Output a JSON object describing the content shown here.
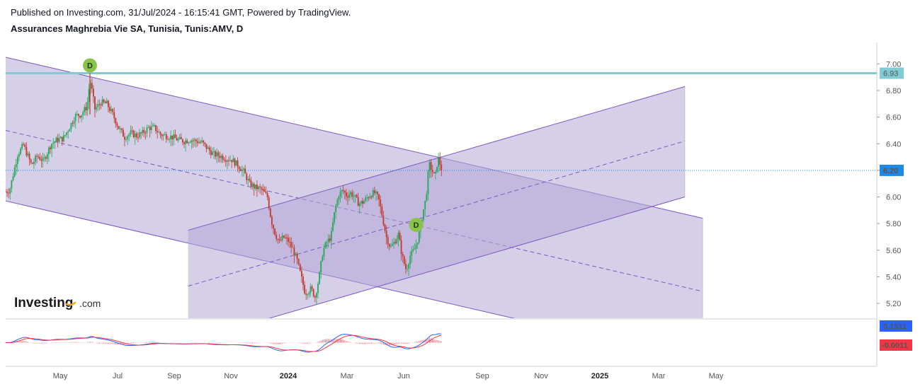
{
  "header": {
    "published": "Published on Investing.com, 31/Jul/2024 - 16:15:41 GMT, Powered by TradingView.",
    "symbol": "Assurances Maghrebia Vie SA, Tunisia, Tunis:AMV, D"
  },
  "logo": {
    "brand": "Investing",
    "suffix": ".com"
  },
  "colors": {
    "up": "#26a65b",
    "down": "#c0392b",
    "channel_fill": "#b4a7d6",
    "channel_line": "#7e57c2",
    "resistance": "#80cbd4",
    "current_price": "#1e88e5",
    "macd_line": "#2962ff",
    "signal_line": "#f23645",
    "dividend": "#8bc34a"
  },
  "chart_data": {
    "type": "candlestick",
    "y_ticks": [
      "7.00",
      "6.80",
      "6.60",
      "6.40",
      "6.20",
      "6.00",
      "5.80",
      "5.60",
      "5.40",
      "5.20"
    ],
    "x_ticks": [
      "May",
      "Jul",
      "Sep",
      "Nov",
      "2024",
      "Mar",
      "Jun",
      "Sep",
      "Nov",
      "2025",
      "Mar",
      "May"
    ],
    "ylim": [
      5.11,
      7.14
    ],
    "price_labels": {
      "resistance": "6.93",
      "current": "6.20"
    },
    "price_path": [
      [
        0,
        6.04
      ],
      [
        4,
        6.05
      ],
      [
        12,
        6.32
      ],
      [
        18,
        6.39
      ],
      [
        26,
        6.24
      ],
      [
        32,
        6.31
      ],
      [
        38,
        6.27
      ],
      [
        46,
        6.4
      ],
      [
        52,
        6.43
      ],
      [
        58,
        6.44
      ],
      [
        64,
        6.52
      ],
      [
        70,
        6.61
      ],
      [
        76,
        6.62
      ],
      [
        82,
        6.68
      ],
      [
        85,
        6.88
      ],
      [
        87,
        6.8
      ],
      [
        90,
        6.66
      ],
      [
        96,
        6.71
      ],
      [
        102,
        6.7
      ],
      [
        108,
        6.62
      ],
      [
        114,
        6.52
      ],
      [
        120,
        6.45
      ],
      [
        126,
        6.48
      ],
      [
        132,
        6.46
      ],
      [
        138,
        6.48
      ],
      [
        144,
        6.52
      ],
      [
        150,
        6.52
      ],
      [
        156,
        6.47
      ],
      [
        162,
        6.46
      ],
      [
        168,
        6.45
      ],
      [
        174,
        6.43
      ],
      [
        180,
        6.42
      ],
      [
        186,
        6.43
      ],
      [
        192,
        6.42
      ],
      [
        198,
        6.41
      ],
      [
        204,
        6.36
      ],
      [
        210,
        6.32
      ],
      [
        216,
        6.31
      ],
      [
        222,
        6.29
      ],
      [
        228,
        6.28
      ],
      [
        234,
        6.24
      ],
      [
        240,
        6.19
      ],
      [
        246,
        6.1
      ],
      [
        252,
        6.07
      ],
      [
        258,
        6.06
      ],
      [
        264,
        6.0
      ],
      [
        268,
        5.82
      ],
      [
        272,
        5.72
      ],
      [
        276,
        5.66
      ],
      [
        280,
        5.7
      ],
      [
        285,
        5.67
      ],
      [
        290,
        5.6
      ],
      [
        294,
        5.52
      ],
      [
        298,
        5.4
      ],
      [
        302,
        5.28
      ],
      [
        308,
        5.31
      ],
      [
        312,
        5.25
      ],
      [
        316,
        5.39
      ],
      [
        320,
        5.6
      ],
      [
        324,
        5.66
      ],
      [
        328,
        5.7
      ],
      [
        332,
        5.9
      ],
      [
        336,
        6.02
      ],
      [
        340,
        6.05
      ],
      [
        344,
        6.01
      ],
      [
        348,
        6.03
      ],
      [
        352,
        6.0
      ],
      [
        356,
        5.95
      ],
      [
        360,
        5.96
      ],
      [
        364,
        5.99
      ],
      [
        368,
        6.02
      ],
      [
        372,
        6.03
      ],
      [
        376,
        5.99
      ],
      [
        380,
        5.85
      ],
      [
        384,
        5.7
      ],
      [
        388,
        5.62
      ],
      [
        392,
        5.66
      ],
      [
        396,
        5.72
      ],
      [
        400,
        5.55
      ],
      [
        404,
        5.45
      ],
      [
        408,
        5.56
      ],
      [
        412,
        5.6
      ],
      [
        416,
        5.69
      ],
      [
        420,
        5.85
      ],
      [
        424,
        6.0
      ],
      [
        427,
        6.25
      ],
      [
        430,
        6.2
      ],
      [
        433,
        6.14
      ],
      [
        436,
        6.3
      ],
      [
        440,
        6.2
      ]
    ],
    "resistance": 6.93,
    "current": 6.2,
    "dividends": [
      {
        "label": "D",
        "x": 85,
        "y": 6.93
      },
      {
        "label": "D",
        "x": 414,
        "y": 5.79
      }
    ],
    "channels": [
      {
        "name": "",
        "upper": [
          [
            0,
            7.05
          ],
          [
            703,
            5.84
          ]
        ],
        "middle": [
          [
            0,
            6.5
          ],
          [
            703,
            5.29
          ]
        ],
        "lower": [
          [
            0,
            5.97
          ],
          [
            703,
            4.76
          ]
        ]
      },
      {
        "name": "",
        "upper": [
          [
            184,
            5.75
          ],
          [
            685,
            6.83
          ]
        ],
        "middle": [
          [
            184,
            5.33
          ],
          [
            685,
            6.42
          ]
        ],
        "lower": [
          [
            184,
            4.91
          ],
          [
            685,
            6.0
          ]
        ]
      }
    ],
    "macd": {
      "labels": {
        "macd": "0.1511",
        "signal": "-0.0011"
      },
      "ylim": [
        -0.32,
        0.17
      ]
    }
  }
}
